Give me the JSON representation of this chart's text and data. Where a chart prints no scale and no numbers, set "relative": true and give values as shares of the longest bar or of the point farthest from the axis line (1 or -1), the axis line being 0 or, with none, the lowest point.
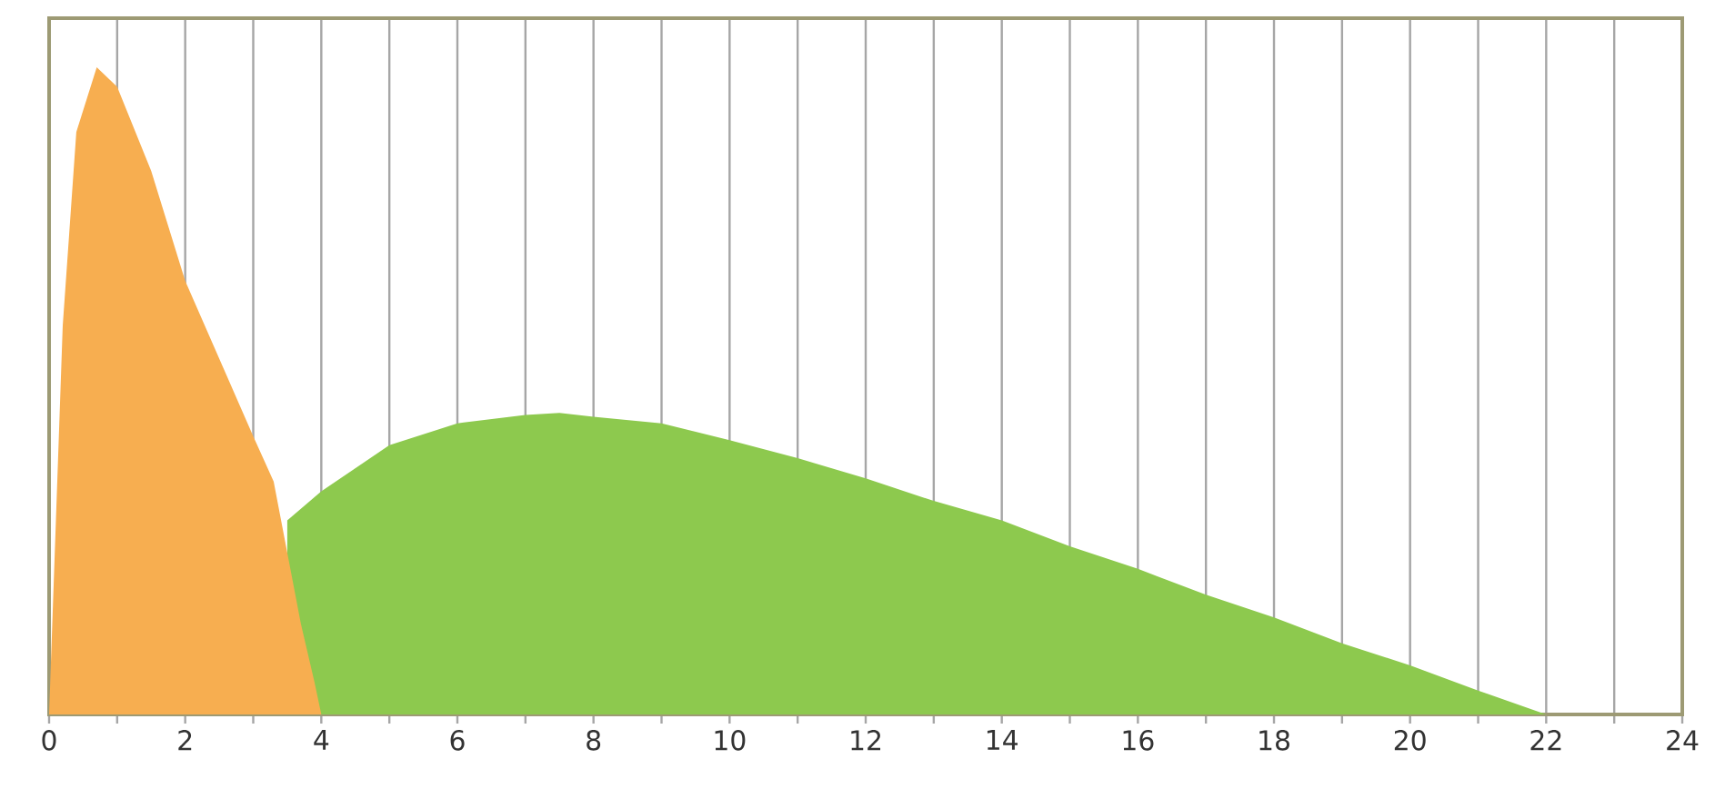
{
  "chart_data": {
    "type": "area",
    "relative": true,
    "grid": "x",
    "xlim": [
      0,
      24
    ],
    "xticks": [
      0,
      {
        "value": 1,
        "label": null
      },
      2,
      {
        "value": 3,
        "label": null
      },
      4,
      {
        "value": 5,
        "label": null
      },
      6,
      {
        "value": 7,
        "label": null
      },
      8,
      {
        "value": 9,
        "label": null
      },
      10,
      {
        "value": 11,
        "label": null
      },
      12,
      {
        "value": 13,
        "label": null
      },
      14,
      {
        "value": 15,
        "label": null
      },
      16,
      {
        "value": 17,
        "label": null
      },
      18,
      {
        "value": 19,
        "label": null
      },
      20,
      {
        "value": 21,
        "label": null
      },
      22,
      {
        "value": 23,
        "label": null
      },
      24
    ],
    "series": [
      {
        "color": "#8dc94e",
        "x": [
          3.5,
          4,
          5,
          6,
          7,
          7.5,
          8,
          9,
          10,
          11,
          12,
          13,
          14,
          15,
          16,
          17,
          18,
          19,
          20,
          21,
          22
        ],
        "values": [
          0.3,
          0.345,
          0.416,
          0.45,
          0.463,
          0.466,
          0.46,
          0.45,
          0.424,
          0.396,
          0.365,
          0.33,
          0.3,
          0.26,
          0.225,
          0.185,
          0.15,
          0.11,
          0.076,
          0.037,
          0
        ]
      },
      {
        "color": "#f7ae50",
        "x": [
          0,
          0.1,
          0.2,
          0.4,
          0.7,
          1.0,
          1.5,
          2.0,
          2.5,
          3.0,
          3.3,
          3.5,
          3.7,
          3.9,
          4.0
        ],
        "values": [
          0,
          0.3,
          0.6,
          0.9,
          1.0,
          0.97,
          0.84,
          0.67,
          0.55,
          0.43,
          0.36,
          0.25,
          0.14,
          0.05,
          0
        ]
      }
    ]
  }
}
